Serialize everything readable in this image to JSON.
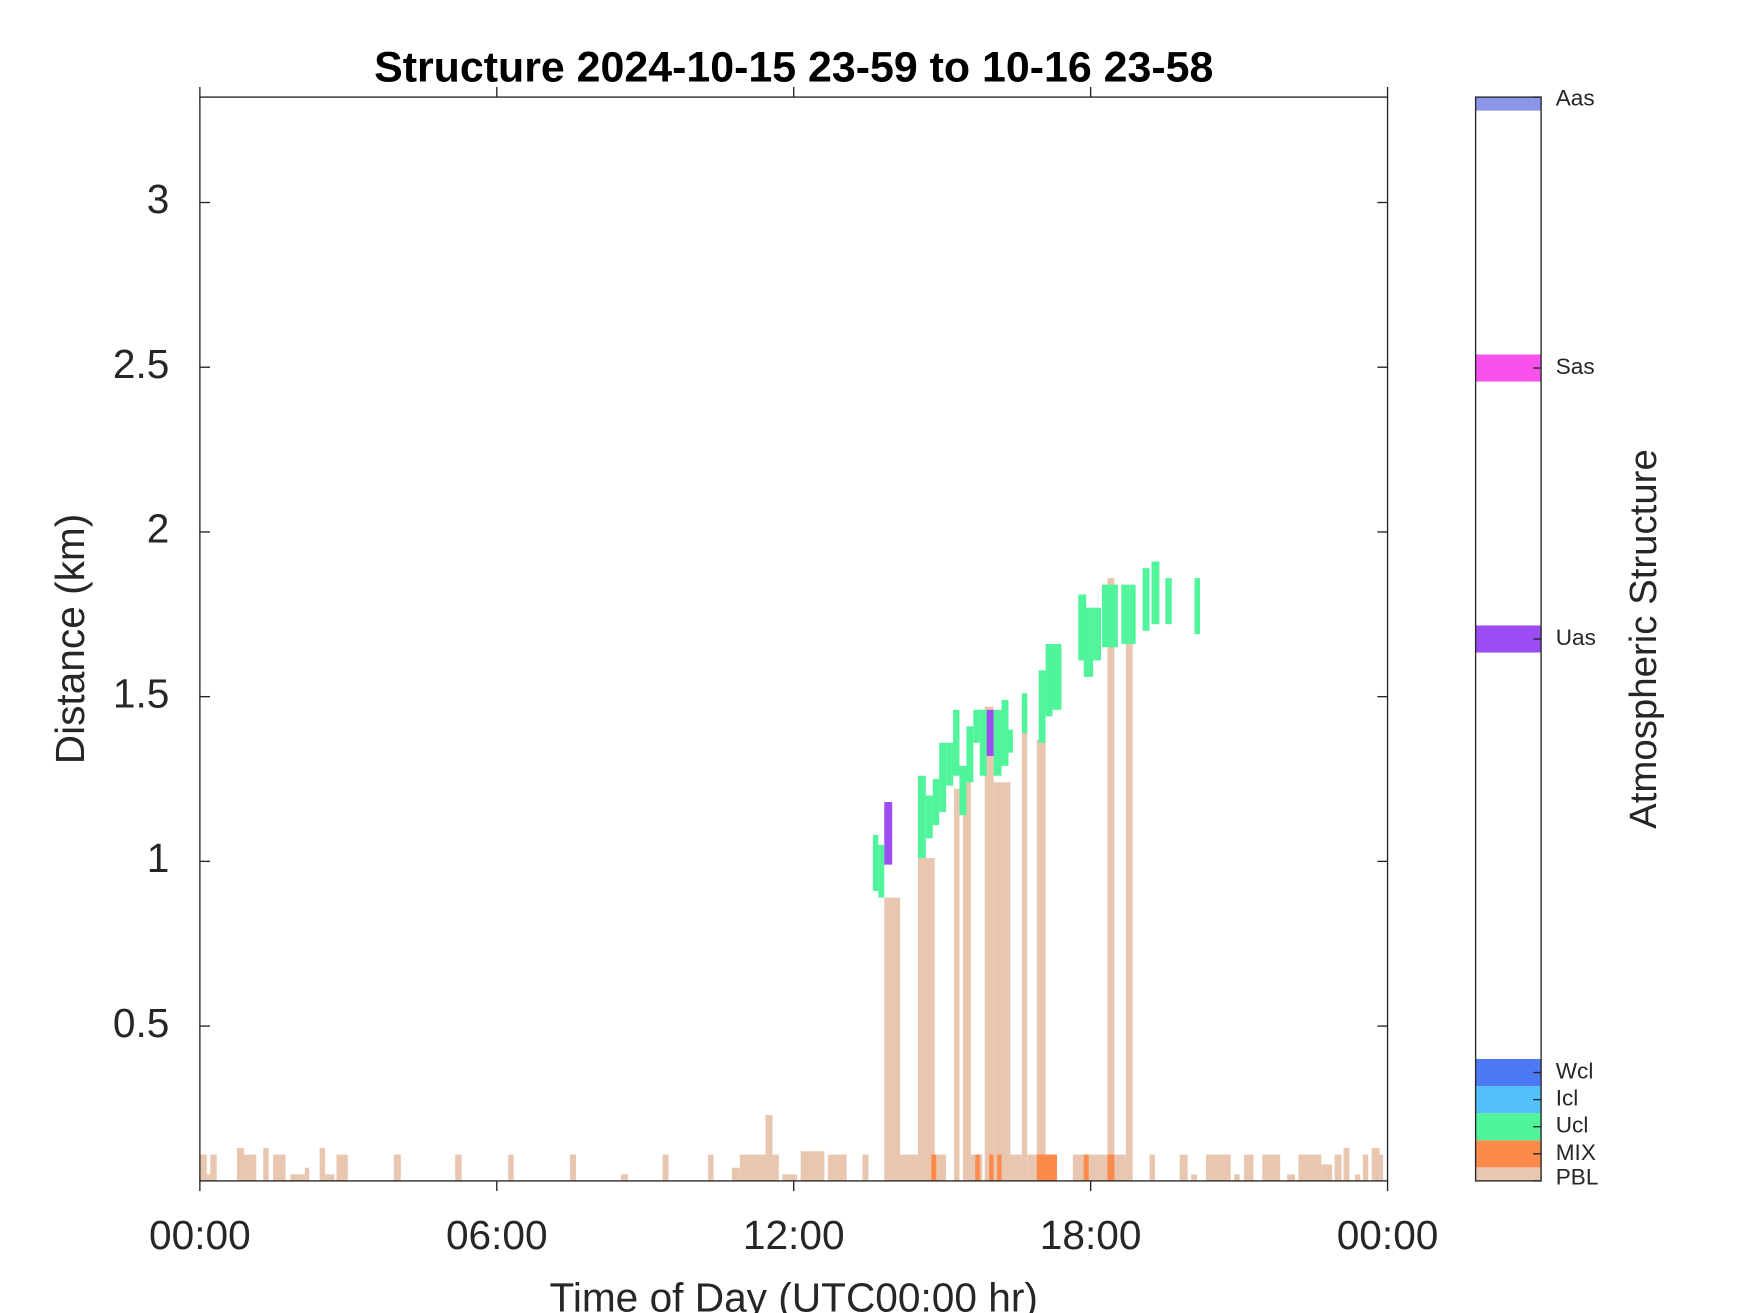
{
  "chart_data": {
    "type": "heatmap",
    "title": "Structure 2024-10-15 23-59 to 10-16 23-58",
    "xlabel": "Time of Day (UTC00:00 hr)",
    "ylabel": "Distance (km)",
    "xlim": [
      0,
      24
    ],
    "xticks": [
      {
        "value": 0,
        "label": "00:00"
      },
      {
        "value": 6,
        "label": "06:00"
      },
      {
        "value": 12,
        "label": "12:00"
      },
      {
        "value": 18,
        "label": "18:00"
      },
      {
        "value": 24,
        "label": "00:00"
      }
    ],
    "ylim": [
      0.03,
      3.32
    ],
    "yticks": [
      0.5,
      1,
      1.5,
      2,
      2.5,
      3
    ],
    "colorbar": {
      "label": "Atmospheric Structure",
      "lim": [
        0,
        40
      ]
    },
    "classes": [
      {
        "name": "PBL",
        "value": 0,
        "color": "#e8c6b0"
      },
      {
        "name": "MIX",
        "value": 1,
        "color": "#fb8a4b"
      },
      {
        "name": "Ucl",
        "value": 2,
        "color": "#50f59b"
      },
      {
        "name": "Icl",
        "value": 3,
        "color": "#52c0fa"
      },
      {
        "name": "Wcl",
        "value": 4,
        "color": "#4d79f5"
      },
      {
        "name": "Uas",
        "value": 20,
        "color": "#9b4cf2"
      },
      {
        "name": "Sas",
        "value": 30,
        "color": "#f852ec"
      },
      {
        "name": "Aas",
        "value": 40,
        "color": "#8b96e8"
      }
    ],
    "cells": [
      [
        0,
        0.14,
        0.03,
        0.11,
        0
      ],
      [
        0.14,
        0.23,
        0.03,
        0.05,
        0
      ],
      [
        0.21,
        0.34,
        0.03,
        0.11,
        0
      ],
      [
        0.75,
        0.89,
        0.03,
        0.13,
        0
      ],
      [
        0.89,
        1.14,
        0.03,
        0.11,
        0
      ],
      [
        1.28,
        1.39,
        0.03,
        0.13,
        0
      ],
      [
        1.48,
        1.73,
        0.03,
        0.11,
        0
      ],
      [
        1.83,
        2.12,
        0.03,
        0.05,
        0
      ],
      [
        2.12,
        2.21,
        0.03,
        0.07,
        0
      ],
      [
        2.42,
        2.53,
        0.03,
        0.13,
        0
      ],
      [
        2.53,
        2.72,
        0.03,
        0.05,
        0
      ],
      [
        2.76,
        2.99,
        0.03,
        0.11,
        0
      ],
      [
        3.92,
        4.06,
        0.03,
        0.11,
        0
      ],
      [
        5.16,
        5.29,
        0.03,
        0.11,
        0
      ],
      [
        6.23,
        6.34,
        0.03,
        0.11,
        0
      ],
      [
        7.48,
        7.6,
        0.03,
        0.11,
        0
      ],
      [
        8.51,
        8.65,
        0.03,
        0.05,
        0
      ],
      [
        9.35,
        9.47,
        0.03,
        0.11,
        0
      ],
      [
        10.27,
        10.38,
        0.03,
        0.11,
        0
      ],
      [
        10.75,
        10.91,
        0.03,
        0.07,
        0
      ],
      [
        10.91,
        11.43,
        0.03,
        0.11,
        0
      ],
      [
        11.43,
        11.57,
        0.03,
        0.23,
        0
      ],
      [
        11.57,
        11.7,
        0.03,
        0.11,
        0
      ],
      [
        11.77,
        12.07,
        0.03,
        0.05,
        0
      ],
      [
        12.14,
        12.62,
        0.03,
        0.12,
        0
      ],
      [
        12.69,
        13.07,
        0.03,
        0.11,
        0
      ],
      [
        13.39,
        13.51,
        0.03,
        0.11,
        0
      ],
      [
        13.83,
        14.15,
        0.03,
        0.89,
        0
      ],
      [
        14.15,
        14.51,
        0.03,
        0.11,
        0
      ],
      [
        14.51,
        14.85,
        0.03,
        1.01,
        0
      ],
      [
        14.85,
        15.08,
        0.03,
        0.11,
        0
      ],
      [
        15.24,
        15.35,
        0.03,
        1.22,
        0
      ],
      [
        15.42,
        15.58,
        0.03,
        1.29,
        0
      ],
      [
        15.58,
        15.81,
        0.03,
        0.11,
        0
      ],
      [
        15.86,
        16.04,
        0.03,
        1.47,
        0
      ],
      [
        16.04,
        16.38,
        0.03,
        1.24,
        0
      ],
      [
        16.38,
        16.61,
        0.03,
        0.11,
        0
      ],
      [
        16.61,
        16.72,
        0.03,
        1.47,
        0
      ],
      [
        16.72,
        16.91,
        0.03,
        0.11,
        0
      ],
      [
        16.91,
        17.09,
        0.03,
        1.37,
        0
      ],
      [
        17.09,
        17.32,
        0.03,
        0.11,
        0
      ],
      [
        17.64,
        18.34,
        0.03,
        0.11,
        0
      ],
      [
        18.34,
        18.48,
        0.03,
        1.86,
        0
      ],
      [
        18.48,
        18.71,
        0.03,
        0.11,
        0
      ],
      [
        18.71,
        18.85,
        0.03,
        1.66,
        0
      ],
      [
        19.19,
        19.3,
        0.03,
        0.11,
        0
      ],
      [
        19.8,
        19.96,
        0.03,
        0.11,
        0
      ],
      [
        20.03,
        20.15,
        0.03,
        0.05,
        0
      ],
      [
        20.33,
        20.83,
        0.03,
        0.11,
        0
      ],
      [
        20.9,
        21.01,
        0.03,
        0.05,
        0
      ],
      [
        21.1,
        21.29,
        0.03,
        0.11,
        0
      ],
      [
        21.47,
        21.83,
        0.03,
        0.11,
        0
      ],
      [
        21.97,
        22.13,
        0.03,
        0.05,
        0
      ],
      [
        22.2,
        22.66,
        0.03,
        0.11,
        0
      ],
      [
        22.66,
        22.88,
        0.03,
        0.08,
        0
      ],
      [
        22.93,
        23.07,
        0.03,
        0.11,
        0
      ],
      [
        23.11,
        23.23,
        0.03,
        0.13,
        0
      ],
      [
        23.34,
        23.45,
        0.03,
        0.05,
        0
      ],
      [
        23.5,
        23.61,
        0.03,
        0.11,
        0
      ],
      [
        23.68,
        23.84,
        0.03,
        0.13,
        0
      ],
      [
        23.84,
        23.91,
        0.03,
        0.11,
        0
      ],
      [
        14.78,
        14.88,
        0.03,
        0.11,
        1
      ],
      [
        15.67,
        15.76,
        0.03,
        0.11,
        1
      ],
      [
        15.95,
        16.04,
        0.03,
        0.11,
        1
      ],
      [
        16.11,
        16.2,
        0.03,
        0.11,
        1
      ],
      [
        16.91,
        17.32,
        0.03,
        0.11,
        1
      ],
      [
        17.86,
        17.96,
        0.03,
        0.11,
        1
      ],
      [
        18.34,
        18.48,
        0.03,
        0.11,
        1
      ],
      [
        13.6,
        13.71,
        0.91,
        1.08,
        2
      ],
      [
        13.71,
        13.83,
        0.89,
        1.05,
        2
      ],
      [
        14.51,
        14.67,
        1.01,
        1.26,
        2
      ],
      [
        14.67,
        14.81,
        1.07,
        1.2,
        2
      ],
      [
        14.81,
        14.94,
        1.11,
        1.25,
        2
      ],
      [
        14.94,
        15.08,
        1.15,
        1.36,
        2
      ],
      [
        15.08,
        15.22,
        1.23,
        1.36,
        2
      ],
      [
        15.22,
        15.35,
        1.26,
        1.46,
        2
      ],
      [
        15.35,
        15.49,
        1.14,
        1.29,
        2
      ],
      [
        15.49,
        15.63,
        1.24,
        1.41,
        2
      ],
      [
        15.63,
        15.76,
        1.36,
        1.46,
        2
      ],
      [
        15.76,
        15.9,
        1.26,
        1.46,
        2
      ],
      [
        16.04,
        16.2,
        1.26,
        1.46,
        2
      ],
      [
        16.2,
        16.34,
        1.29,
        1.49,
        2
      ],
      [
        16.34,
        16.43,
        1.33,
        1.4,
        2
      ],
      [
        16.61,
        16.72,
        1.39,
        1.51,
        2
      ],
      [
        16.95,
        17.09,
        1.36,
        1.58,
        2
      ],
      [
        17.09,
        17.23,
        1.44,
        1.66,
        2
      ],
      [
        17.23,
        17.41,
        1.46,
        1.66,
        2
      ],
      [
        17.75,
        17.91,
        1.61,
        1.81,
        2
      ],
      [
        17.86,
        18.05,
        1.56,
        1.77,
        2
      ],
      [
        18.05,
        18.21,
        1.61,
        1.77,
        2
      ],
      [
        18.23,
        18.41,
        1.65,
        1.84,
        2
      ],
      [
        18.41,
        18.55,
        1.65,
        1.84,
        2
      ],
      [
        18.62,
        18.78,
        1.66,
        1.84,
        2
      ],
      [
        18.78,
        18.91,
        1.66,
        1.84,
        2
      ],
      [
        19.05,
        19.19,
        1.7,
        1.89,
        2
      ],
      [
        19.23,
        19.39,
        1.72,
        1.91,
        2
      ],
      [
        19.51,
        19.64,
        1.72,
        1.86,
        2
      ],
      [
        20.1,
        20.21,
        1.69,
        1.86,
        2
      ],
      [
        13.83,
        13.99,
        0.99,
        1.18,
        20
      ],
      [
        15.9,
        16.04,
        1.32,
        1.46,
        20
      ]
    ]
  }
}
